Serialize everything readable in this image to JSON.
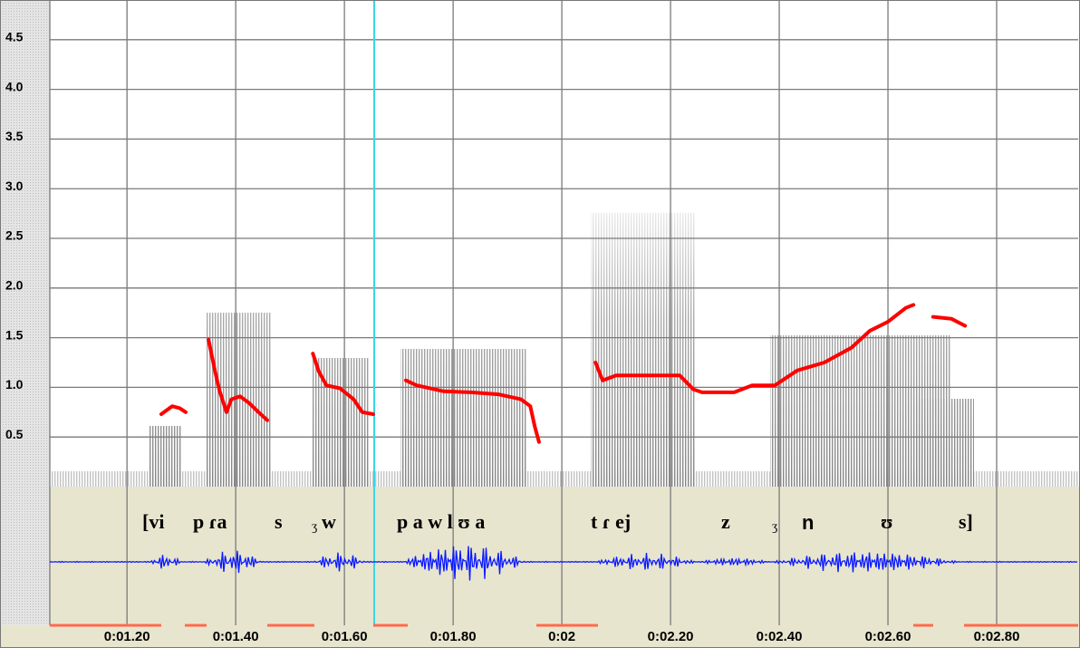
{
  "chart_data": {
    "type": "line",
    "annotations": [
      "[vi",
      "p ɾa",
      "s",
      "ʒ",
      "w",
      "p a w l ʊ a",
      "t ɾ ej",
      "z",
      "ʒ",
      "n",
      "ʊ",
      "s]"
    ],
    "series": [
      {
        "color": "#ff0000",
        "x": [
          1.263,
          1.283,
          1.297,
          1.308,
          null,
          1.35,
          1.362,
          1.37,
          1.383,
          1.392,
          1.408,
          1.425,
          1.442,
          1.458,
          null,
          1.542,
          1.553,
          1.567,
          1.592,
          1.617,
          1.633,
          1.653,
          null,
          1.713,
          1.733,
          1.783,
          1.833,
          1.883,
          1.925,
          1.942,
          1.95,
          1.958,
          null,
          2.062,
          2.075,
          2.1,
          2.133,
          2.217,
          2.242,
          2.258,
          2.317,
          2.35,
          2.392,
          2.433,
          2.483,
          2.533,
          2.567,
          2.6,
          2.633,
          2.647,
          null,
          2.683,
          2.717,
          2.742
        ],
        "values": [
          0.73,
          0.81,
          0.79,
          0.75,
          null,
          1.48,
          1.16,
          0.97,
          0.75,
          0.88,
          0.91,
          0.84,
          0.75,
          0.67,
          null,
          1.34,
          1.16,
          1.02,
          0.99,
          0.88,
          0.75,
          0.73,
          null,
          1.07,
          1.02,
          0.96,
          0.95,
          0.93,
          0.88,
          0.81,
          0.61,
          0.45,
          null,
          1.25,
          1.07,
          1.12,
          1.12,
          1.12,
          0.98,
          0.95,
          0.95,
          1.02,
          1.02,
          1.17,
          1.25,
          1.4,
          1.57,
          1.66,
          1.8,
          1.83,
          null,
          1.71,
          1.69,
          1.62
        ]
      }
    ],
    "xlim": [
      1.058,
      2.95
    ],
    "xticks": [
      {
        "value": 1.2,
        "label": "0:01.20"
      },
      {
        "value": 1.4,
        "label": "0:01.40"
      },
      {
        "value": 1.6,
        "label": "0:01.60"
      },
      {
        "value": 1.8,
        "label": "0:01.80"
      },
      {
        "value": 2.0,
        "label": "0:02"
      },
      {
        "value": 2.2,
        "label": "0:02.20"
      },
      {
        "value": 2.4,
        "label": "0:02.40"
      },
      {
        "value": 2.6,
        "label": "0:02.60"
      },
      {
        "value": 2.8,
        "label": "0:02.80"
      }
    ],
    "ylim": [
      0,
      4.9
    ],
    "yticks": [
      0.5,
      {
        "value": 1,
        "label": "1.0"
      },
      1.5,
      {
        "value": 2,
        "label": "2.0"
      },
      2.5,
      {
        "value": 3,
        "label": "3.0"
      },
      3.5,
      {
        "value": 4,
        "label": "4.0"
      },
      4.5
    ],
    "grid": true
  }
}
